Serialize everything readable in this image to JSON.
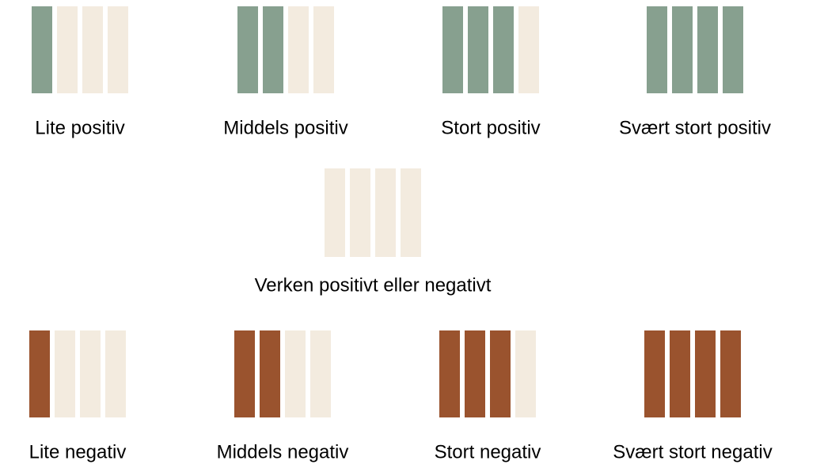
{
  "empty_color": "#f3ebdf",
  "rows": [
    {
      "color": "#87a08f",
      "items": [
        {
          "label": "Lite positiv",
          "filled": 1
        },
        {
          "label": "Middels positiv",
          "filled": 2
        },
        {
          "label": "Stort positiv",
          "filled": 3
        },
        {
          "label": "Svært stort positiv",
          "filled": 4
        }
      ]
    },
    {
      "color": "#87a08f",
      "items": [
        {
          "label": "Verken positivt eller negativt",
          "filled": 0
        }
      ]
    },
    {
      "color": "#9a532e",
      "items": [
        {
          "label": "Lite negativ",
          "filled": 1
        },
        {
          "label": "Middels negativ",
          "filled": 2
        },
        {
          "label": "Stort negativ",
          "filled": 3
        },
        {
          "label": "Svært stort negativ",
          "filled": 4
        }
      ]
    }
  ]
}
